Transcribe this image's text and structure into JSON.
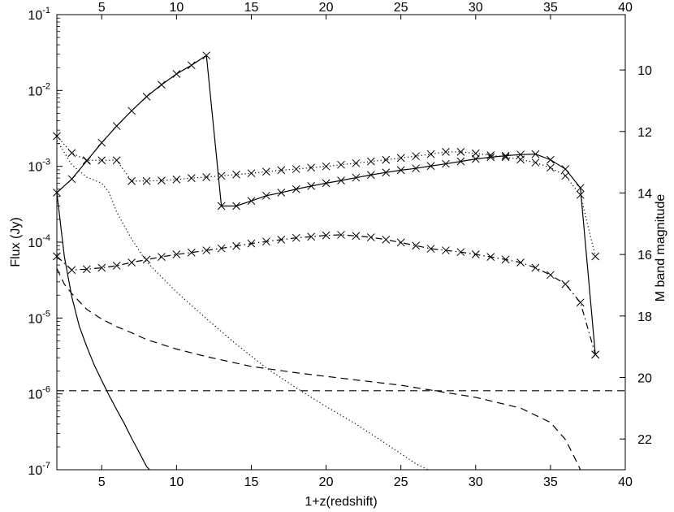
{
  "chart_data": {
    "type": "line",
    "xlabel": "1+z(redshift)",
    "ylabel": "Flux (Jy)",
    "y2label": "M band magnitude",
    "xlim": [
      2,
      40
    ],
    "ylim": [
      1e-07,
      0.1
    ],
    "yscale": "log",
    "y2lim": [
      8.2,
      23
    ],
    "y2ticks": [
      10,
      12,
      14,
      16,
      18,
      20,
      22
    ],
    "xticks_bottom": [
      5,
      10,
      15,
      20,
      25,
      30,
      35,
      40
    ],
    "xticks_top": [
      5,
      10,
      15,
      20,
      25,
      30,
      35,
      40
    ],
    "yticks": [
      {
        "value": 1e-07,
        "base": "10",
        "exp": "-7"
      },
      {
        "value": 1e-06,
        "base": "10",
        "exp": "-6"
      },
      {
        "value": 1e-05,
        "base": "10",
        "exp": "-5"
      },
      {
        "value": 0.0001,
        "base": "10",
        "exp": "-4"
      },
      {
        "value": 0.001,
        "base": "10",
        "exp": "-3"
      },
      {
        "value": 0.01,
        "base": "10",
        "exp": "-2"
      },
      {
        "value": 0.1,
        "base": "10",
        "exp": "-1"
      }
    ],
    "grid": false,
    "legend": "none",
    "series": [
      {
        "style": "solid",
        "markers": true,
        "x": [
          2,
          3,
          4,
          5,
          6,
          7,
          8,
          9,
          10,
          11,
          12,
          13,
          14,
          15,
          16,
          17,
          18,
          19,
          20,
          21,
          22,
          23,
          24,
          25,
          26,
          27,
          28,
          29,
          30,
          31,
          32,
          33,
          34,
          35,
          36,
          37,
          38
        ],
        "y": [
          0.00045,
          0.00068,
          0.00118,
          0.00205,
          0.0034,
          0.0054,
          0.0083,
          0.0119,
          0.0165,
          0.0215,
          0.029,
          0.0003,
          0.0003,
          0.00035,
          0.00041,
          0.00045,
          0.0005,
          0.00055,
          0.0006,
          0.00065,
          0.00071,
          0.00077,
          0.00083,
          0.00089,
          0.00094,
          0.00101,
          0.00108,
          0.00116,
          0.00125,
          0.00132,
          0.00138,
          0.00143,
          0.00145,
          0.00122,
          0.00092,
          0.00052,
          3.3e-06
        ]
      },
      {
        "style": "dotted",
        "markers": true,
        "x": [
          2,
          3,
          4,
          5,
          6,
          7,
          8,
          9,
          10,
          11,
          12,
          13,
          14,
          15,
          16,
          17,
          18,
          19,
          20,
          21,
          22,
          23,
          24,
          25,
          26,
          27,
          28,
          29,
          30,
          31,
          32,
          33,
          34,
          35,
          36,
          37,
          38
        ],
        "y": [
          0.0025,
          0.0015,
          0.0012,
          0.0012,
          0.0012,
          0.00064,
          0.00064,
          0.00065,
          0.00067,
          0.0007,
          0.00072,
          0.00075,
          0.00078,
          0.00081,
          0.00085,
          0.00089,
          0.00092,
          0.00096,
          0.001,
          0.00105,
          0.0011,
          0.00116,
          0.00122,
          0.00129,
          0.00136,
          0.00145,
          0.00155,
          0.00155,
          0.00148,
          0.0014,
          0.00132,
          0.00123,
          0.00112,
          0.00096,
          0.00075,
          0.00042,
          6.5e-05
        ]
      },
      {
        "style": "dashdot",
        "markers": true,
        "x": [
          2,
          3,
          4,
          5,
          6,
          7,
          8,
          9,
          10,
          11,
          12,
          13,
          14,
          15,
          16,
          17,
          18,
          19,
          20,
          21,
          22,
          23,
          24,
          25,
          26,
          27,
          28,
          29,
          30,
          31,
          32,
          33,
          34,
          35,
          36,
          37,
          38
        ],
        "y": [
          6.5e-05,
          4.3e-05,
          4.4e-05,
          4.6e-05,
          4.9e-05,
          5.4e-05,
          5.9e-05,
          6.4e-05,
          6.9e-05,
          7.3e-05,
          7.8e-05,
          8.3e-05,
          8.9e-05,
          9.6e-05,
          0.000102,
          0.000108,
          0.000114,
          0.000118,
          0.000123,
          0.000125,
          0.000121,
          0.000116,
          0.000108,
          9.9e-05,
          9e-05,
          8.2e-05,
          7.8e-05,
          7.4e-05,
          6.9e-05,
          6.4e-05,
          5.9e-05,
          5.4e-05,
          4.6e-05,
          3.7e-05,
          2.8e-05,
          1.6e-05,
          3.3e-06
        ]
      },
      {
        "style": "solid",
        "markers": false,
        "x": [
          2,
          2.5,
          3,
          3.5,
          4,
          4.5,
          5,
          5.5,
          6,
          6.5,
          7,
          7.5,
          8,
          8.2
        ],
        "y": [
          0.00045,
          6.5e-05,
          1.9e-05,
          7.8e-06,
          4.2e-06,
          2.4e-06,
          1.5e-06,
          9.5e-07,
          6.2e-07,
          4.1e-07,
          2.6e-07,
          1.7e-07,
          1.1e-07,
          1e-07
        ]
      },
      {
        "style": "dotted",
        "markers": false,
        "x": [
          2,
          3,
          4,
          5,
          5.5,
          6,
          7,
          8,
          10,
          12,
          14,
          16,
          18,
          20,
          22,
          24,
          26,
          26.8
        ],
        "y": [
          0.0022,
          0.00105,
          0.00072,
          0.0006,
          0.00045,
          0.00025,
          0.00011,
          5.5e-05,
          2.2e-05,
          9.8e-06,
          4.5e-06,
          2.2e-06,
          1.2e-06,
          6.8e-07,
          4e-07,
          2.2e-07,
          1.2e-07,
          1e-07
        ]
      },
      {
        "style": "dashed",
        "markers": false,
        "x": [
          2,
          2.5,
          3,
          4,
          5,
          6,
          7,
          8,
          10,
          12,
          15,
          18,
          20,
          25,
          30,
          33,
          35,
          36,
          36.5,
          37
        ],
        "y": [
          4.5e-05,
          2.8e-05,
          2.1e-05,
          1.3e-05,
          9.7e-06,
          7.7e-06,
          6.4e-06,
          5.2e-06,
          3.9e-06,
          3.1e-06,
          2.3e-06,
          1.9e-06,
          1.7e-06,
          1.3e-06,
          9e-07,
          6.5e-07,
          4.2e-07,
          2.5e-07,
          1.6e-07,
          1e-07
        ]
      },
      {
        "style": "dashed",
        "markers": false,
        "x": [
          2,
          40
        ],
        "y": [
          1.1e-06,
          1.1e-06
        ]
      }
    ]
  }
}
